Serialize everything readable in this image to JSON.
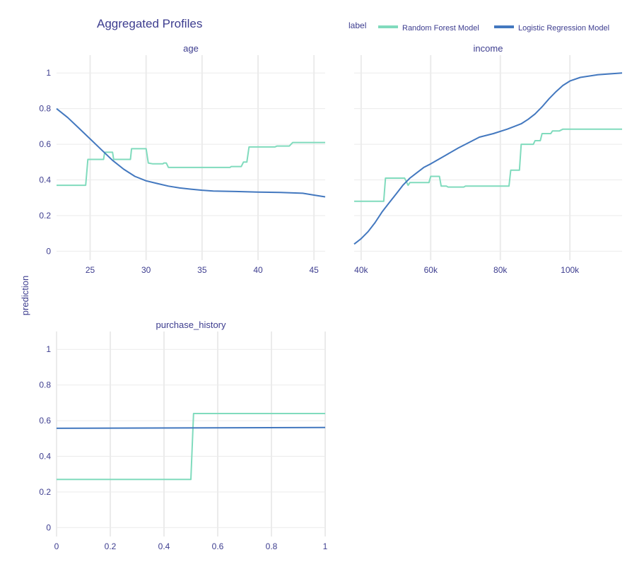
{
  "title": "Aggregated Profiles",
  "ylabel": "prediction",
  "legend": {
    "label": "label",
    "placement": "top-right",
    "entries": [
      {
        "name": "Random Forest Model",
        "color": "#80dbbd"
      },
      {
        "name": "Logistic Regression Model",
        "color": "#4378bf"
      }
    ]
  },
  "chart_data": [
    {
      "type": "line",
      "title": "age",
      "xlim": [
        22,
        46
      ],
      "ylim": [
        -0.05,
        1.1
      ],
      "xticks": [
        25,
        30,
        35,
        40,
        45
      ],
      "xtick_labels": [
        "25",
        "30",
        "35",
        "40",
        "45"
      ],
      "yticks": [
        0,
        0.2,
        0.4,
        0.6,
        0.8,
        1
      ],
      "ytick_labels": [
        "0",
        "0.2",
        "0.4",
        "0.6",
        "0.8",
        "1"
      ],
      "show_yticks": true,
      "series": [
        {
          "name": "Random Forest Model",
          "color": "#80dbbd",
          "x": [
            22,
            24.6,
            24.8,
            26.2,
            26.3,
            27.0,
            27.1,
            28.6,
            28.7,
            30.0,
            30.2,
            30.6,
            31.5,
            31.6,
            31.8,
            32.0,
            37.5,
            37.6,
            38.5,
            38.7,
            39.0,
            39.2,
            41.5,
            41.7,
            42.8,
            43.1,
            46
          ],
          "y": [
            0.37,
            0.37,
            0.515,
            0.515,
            0.555,
            0.555,
            0.515,
            0.515,
            0.575,
            0.575,
            0.495,
            0.49,
            0.49,
            0.495,
            0.495,
            0.47,
            0.47,
            0.475,
            0.475,
            0.5,
            0.5,
            0.585,
            0.585,
            0.59,
            0.59,
            0.61,
            0.61
          ]
        },
        {
          "name": "Logistic Regression Model",
          "color": "#4378bf",
          "x": [
            22,
            23,
            24,
            25,
            26,
            27,
            28,
            29,
            30,
            31,
            32,
            33,
            34,
            35,
            36,
            38,
            40,
            42,
            44,
            45,
            46
          ],
          "y": [
            0.8,
            0.75,
            0.69,
            0.63,
            0.57,
            0.51,
            0.46,
            0.42,
            0.395,
            0.38,
            0.365,
            0.355,
            0.348,
            0.342,
            0.338,
            0.335,
            0.332,
            0.33,
            0.325,
            0.315,
            0.305
          ]
        }
      ]
    },
    {
      "type": "line",
      "title": "income",
      "xlim": [
        38000,
        115000
      ],
      "ylim": [
        -0.05,
        1.1
      ],
      "xticks": [
        40000,
        60000,
        80000,
        100000
      ],
      "xtick_labels": [
        "40k",
        "60k",
        "80k",
        "100k"
      ],
      "yticks": [
        0,
        0.2,
        0.4,
        0.6,
        0.8,
        1
      ],
      "ytick_labels": [
        "0",
        "0.2",
        "0.4",
        "0.6",
        "0.8",
        "1"
      ],
      "show_yticks": false,
      "series": [
        {
          "name": "Random Forest Model",
          "color": "#80dbbd",
          "x": [
            38000,
            46500,
            47000,
            52500,
            53500,
            54000,
            59500,
            60000,
            62500,
            63000,
            64500,
            65000,
            69500,
            70000,
            82500,
            83000,
            85500,
            86000,
            89500,
            90000,
            91500,
            92000,
            94500,
            95000,
            97000,
            98000,
            115000
          ],
          "y": [
            0.28,
            0.28,
            0.41,
            0.41,
            0.37,
            0.385,
            0.385,
            0.42,
            0.42,
            0.365,
            0.365,
            0.36,
            0.36,
            0.365,
            0.365,
            0.455,
            0.455,
            0.6,
            0.6,
            0.62,
            0.62,
            0.66,
            0.66,
            0.675,
            0.675,
            0.685,
            0.685
          ]
        },
        {
          "name": "Logistic Regression Model",
          "color": "#4378bf",
          "x": [
            38000,
            40000,
            42000,
            44000,
            46000,
            48000,
            50000,
            52000,
            54000,
            56000,
            58000,
            60000,
            64000,
            68000,
            70000,
            74000,
            78000,
            82000,
            84000,
            86000,
            88000,
            90000,
            92000,
            94000,
            96000,
            98000,
            100000,
            103000,
            108000,
            115000
          ],
          "y": [
            0.04,
            0.07,
            0.11,
            0.16,
            0.22,
            0.27,
            0.32,
            0.37,
            0.41,
            0.44,
            0.47,
            0.49,
            0.535,
            0.58,
            0.6,
            0.64,
            0.66,
            0.685,
            0.7,
            0.715,
            0.74,
            0.77,
            0.81,
            0.855,
            0.895,
            0.93,
            0.955,
            0.975,
            0.99,
            1.0
          ]
        }
      ]
    },
    {
      "type": "line",
      "title": "purchase_history",
      "xlim": [
        0,
        1
      ],
      "ylim": [
        -0.05,
        1.1
      ],
      "xticks": [
        0,
        0.2,
        0.4,
        0.6,
        0.8,
        1
      ],
      "xtick_labels": [
        "0",
        "0.2",
        "0.4",
        "0.6",
        "0.8",
        "1"
      ],
      "yticks": [
        0,
        0.2,
        0.4,
        0.6,
        0.8,
        1
      ],
      "ytick_labels": [
        "0",
        "0.2",
        "0.4",
        "0.6",
        "0.8",
        "1"
      ],
      "show_yticks": true,
      "series": [
        {
          "name": "Random Forest Model",
          "color": "#80dbbd",
          "x": [
            0,
            0.5,
            0.51,
            1
          ],
          "y": [
            0.27,
            0.27,
            0.64,
            0.64
          ]
        },
        {
          "name": "Logistic Regression Model",
          "color": "#4378bf",
          "x": [
            0,
            1
          ],
          "y": [
            0.557,
            0.562
          ]
        }
      ]
    }
  ]
}
